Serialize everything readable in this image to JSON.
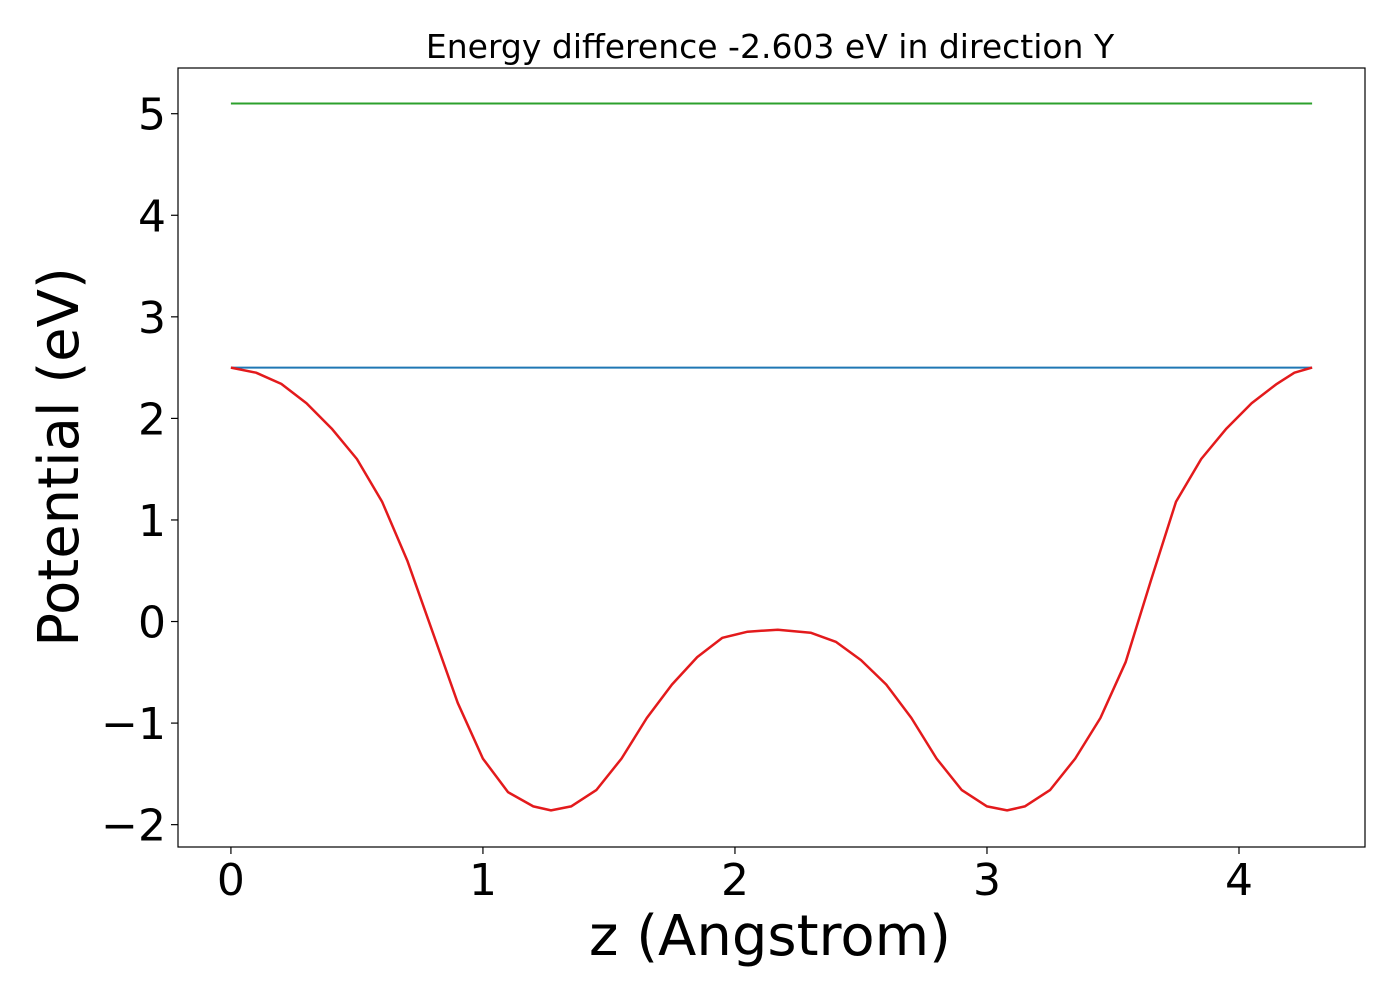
{
  "chart_data": {
    "type": "line",
    "title": "Energy difference -2.603 eV in direction Y",
    "xlabel": "z (Angstrom)",
    "ylabel": "Potential (eV)",
    "xlim": [
      -0.21,
      4.5
    ],
    "ylim": [
      -2.22,
      5.45
    ],
    "xticks": [
      0,
      1,
      2,
      3,
      4
    ],
    "xtick_labels": [
      "0",
      "1",
      "2",
      "3",
      "4"
    ],
    "yticks": [
      -2,
      -1,
      0,
      1,
      2,
      3,
      4,
      5
    ],
    "ytick_labels": [
      "−2",
      "−1",
      "0",
      "1",
      "2",
      "3",
      "4",
      "5"
    ],
    "grid": false,
    "legend": "none",
    "series": [
      {
        "color": "#2ca02c",
        "x": [
          0.0,
          4.29
        ],
        "y": [
          5.1,
          5.1
        ]
      },
      {
        "color": "#1f77b4",
        "x": [
          0.0,
          4.29
        ],
        "y": [
          2.5,
          2.5
        ]
      },
      {
        "color": "#e31a1c",
        "x": [
          0.0,
          0.1,
          0.2,
          0.3,
          0.4,
          0.5,
          0.6,
          0.7,
          0.8,
          0.9,
          1.0,
          1.1,
          1.2,
          1.27,
          1.35,
          1.45,
          1.55,
          1.65,
          1.75,
          1.85,
          1.95,
          2.05,
          2.17,
          2.3,
          2.4,
          2.5,
          2.6,
          2.7,
          2.8,
          2.9,
          3.0,
          3.08,
          3.15,
          3.25,
          3.35,
          3.45,
          3.55,
          3.65,
          3.75,
          3.85,
          3.95,
          4.05,
          4.15,
          4.22,
          4.29
        ],
        "y": [
          2.5,
          2.45,
          2.34,
          2.15,
          1.9,
          1.6,
          1.18,
          0.6,
          -0.1,
          -0.8,
          -1.35,
          -1.68,
          -1.82,
          -1.86,
          -1.82,
          -1.66,
          -1.35,
          -0.95,
          -0.62,
          -0.35,
          -0.16,
          -0.1,
          -0.08,
          -0.11,
          -0.2,
          -0.38,
          -0.62,
          -0.95,
          -1.35,
          -1.66,
          -1.82,
          -1.86,
          -1.82,
          -1.66,
          -1.35,
          -0.95,
          -0.4,
          0.4,
          1.18,
          1.6,
          1.9,
          2.15,
          2.34,
          2.45,
          2.5
        ]
      }
    ]
  }
}
